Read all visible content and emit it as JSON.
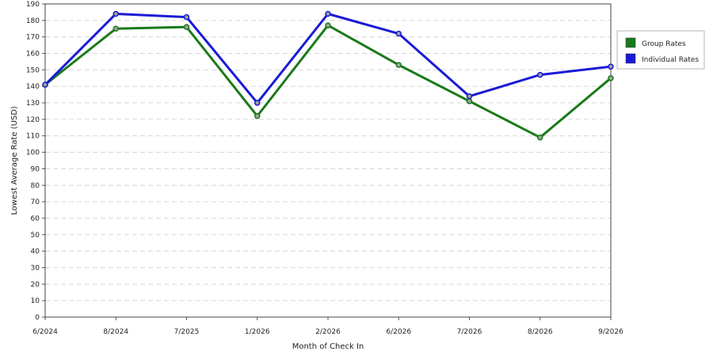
{
  "chart_data": {
    "type": "line",
    "xlabel": "Month of Check In",
    "ylabel": "Lowest Average Rate (USD)",
    "categories": [
      "6/2024",
      "8/2024",
      "7/2025",
      "1/2026",
      "2/2026",
      "6/2026",
      "7/2026",
      "8/2026",
      "9/2026"
    ],
    "ylim": [
      0,
      190
    ],
    "yticks": [
      0,
      10,
      20,
      30,
      40,
      50,
      60,
      70,
      80,
      90,
      100,
      110,
      120,
      130,
      140,
      150,
      160,
      170,
      180,
      190
    ],
    "grid": true,
    "legend_position": "right",
    "series": [
      {
        "name": "Group Rates",
        "color": "#1a7a1a",
        "values": [
          141,
          175,
          176,
          122,
          177,
          153,
          131,
          109,
          145
        ]
      },
      {
        "name": "Individual Rates",
        "color": "#1a1ad6",
        "values": [
          141,
          184,
          182,
          130,
          184,
          172,
          134,
          147,
          152
        ]
      }
    ]
  }
}
